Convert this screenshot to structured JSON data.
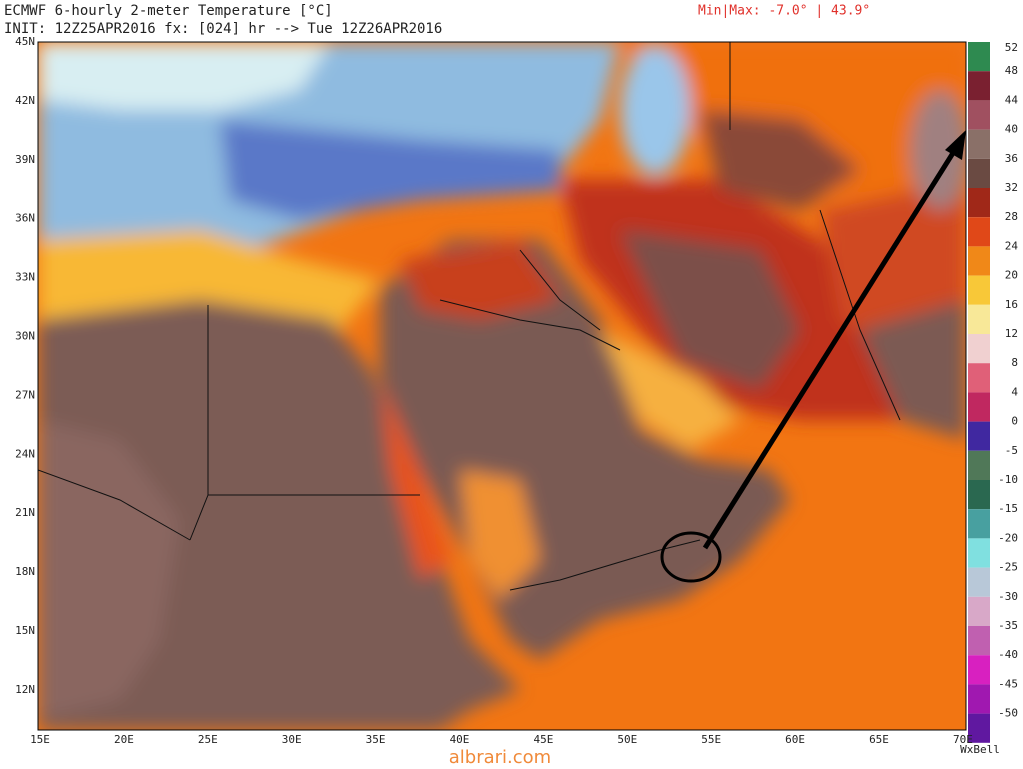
{
  "header": {
    "title": "ECMWF 6-hourly 2-meter Temperature [°C]",
    "init": "INIT: 12Z25APR2016 fx: [024] hr --> Tue 12Z26APR2016",
    "minmax": "Min|Max: -7.0° | 43.9°"
  },
  "map": {
    "lat_labels": [
      "45N",
      "42N",
      "39N",
      "36N",
      "33N",
      "30N",
      "27N",
      "24N",
      "21N",
      "18N",
      "15N",
      "12N"
    ],
    "lon_labels": [
      "15E",
      "20E",
      "25E",
      "30E",
      "35E",
      "40E",
      "45E",
      "50E",
      "55E",
      "60E",
      "65E",
      "70E"
    ]
  },
  "colorbar": {
    "labels": [
      "52",
      "48",
      "44",
      "40",
      "36",
      "32",
      "28",
      "24",
      "20",
      "16",
      "12",
      "8",
      "4",
      "0",
      "-5",
      "-10",
      "-15",
      "-20",
      "-25",
      "-30",
      "-35",
      "-40",
      "-45",
      "-50"
    ]
  },
  "footer": {
    "brand": "WxBell",
    "watermark": "albrari.com"
  }
}
